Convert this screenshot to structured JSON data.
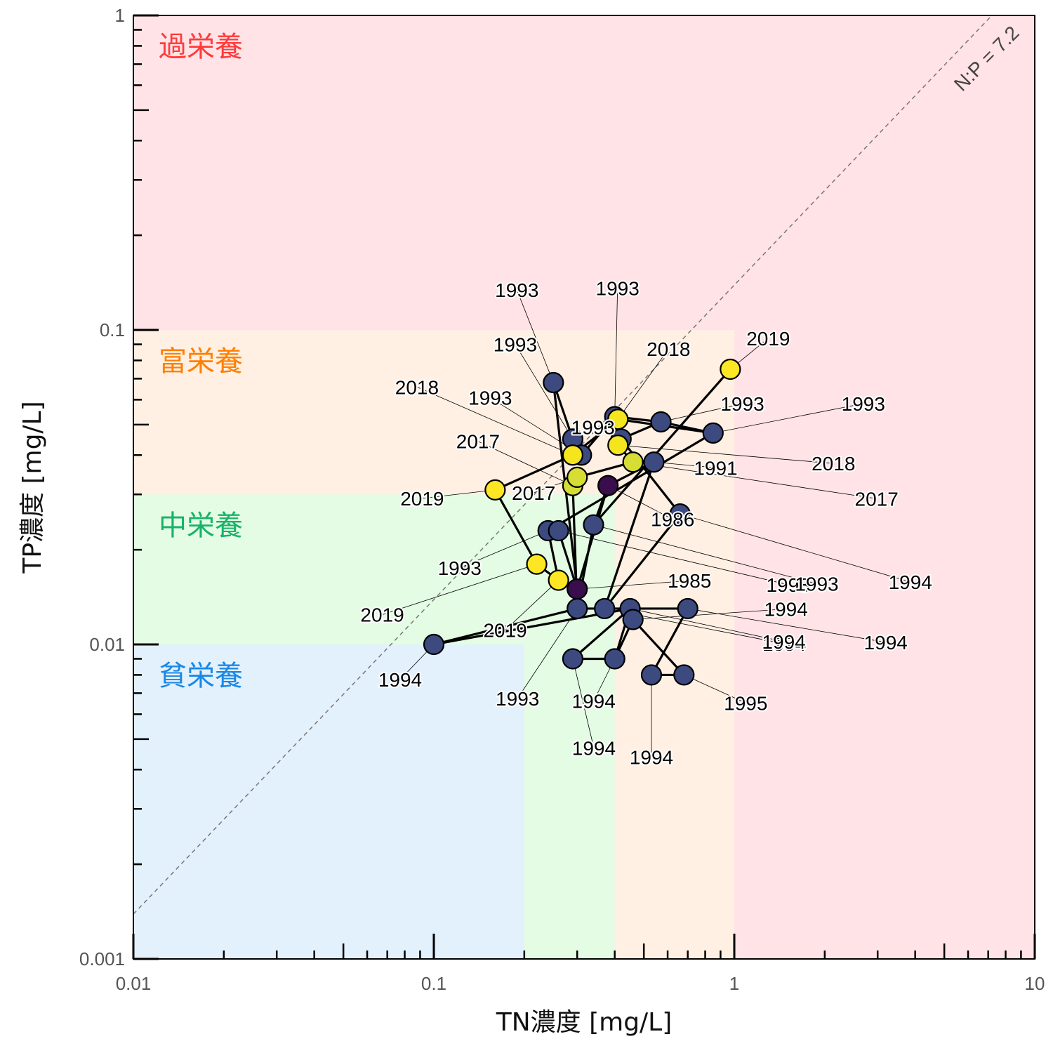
{
  "chart_data": {
    "type": "scatter",
    "xlabel": "TN濃度 [mg/L]",
    "ylabel": "TP濃度 [mg/L]",
    "x_scale": "log",
    "y_scale": "log",
    "xlim": [
      0.01,
      10
    ],
    "ylim": [
      0.001,
      1
    ],
    "x_tick_labels": [
      "0.01",
      "0.1",
      "1",
      "10"
    ],
    "y_tick_labels": [
      "0.001",
      "0.01",
      "0.1",
      "1"
    ],
    "grid": false,
    "reference_line": {
      "label": "N:P = 7.2",
      "ratio": 7.2
    },
    "zones": [
      {
        "label": "過栄養",
        "fill": "#ffe3e6",
        "text_color": "#ff3b3b",
        "tn_max": 10,
        "tp_max": 1
      },
      {
        "label": "富栄養",
        "fill": "#fff0e3",
        "text_color": "#ff7f00",
        "tn_max": 1,
        "tp_max": 0.1
      },
      {
        "label": "中栄養",
        "fill": "#e4fce3",
        "text_color": "#18b26b",
        "tn_max": 0.4,
        "tp_max": 0.03
      },
      {
        "label": "貧栄養",
        "fill": "#e3f1fd",
        "text_color": "#1a88e6",
        "tn_max": 0.2,
        "tp_max": 0.01
      }
    ],
    "points": [
      {
        "label": "1985",
        "tn": 0.3,
        "tp": 0.015,
        "color": "#3a0d4c"
      },
      {
        "label": "1986",
        "tn": 0.38,
        "tp": 0.032,
        "color": "#3a0d4c"
      },
      {
        "label": "1991",
        "tn": 0.54,
        "tp": 0.038,
        "color": "#3c4a80"
      },
      {
        "label": "1993",
        "tn": 0.25,
        "tp": 0.068,
        "color": "#3c4a80"
      },
      {
        "label": "1993",
        "tn": 0.29,
        "tp": 0.045,
        "color": "#3c4a80"
      },
      {
        "label": "1993",
        "tn": 0.31,
        "tp": 0.04,
        "color": "#3c4a80"
      },
      {
        "label": "1993",
        "tn": 0.4,
        "tp": 0.053,
        "color": "#3c4a80"
      },
      {
        "label": "1993",
        "tn": 0.57,
        "tp": 0.051,
        "color": "#3c4a80"
      },
      {
        "label": "1993",
        "tn": 0.85,
        "tp": 0.047,
        "color": "#3c4a80"
      },
      {
        "label": "1993",
        "tn": 0.42,
        "tp": 0.045,
        "color": "#3c4a80"
      },
      {
        "label": "1993",
        "tn": 0.24,
        "tp": 0.023,
        "color": "#3c4a80"
      },
      {
        "label": "1993",
        "tn": 0.26,
        "tp": 0.023,
        "color": "#3c4a80"
      },
      {
        "label": "1993",
        "tn": 0.34,
        "tp": 0.024,
        "color": "#3c4a80"
      },
      {
        "label": "1993",
        "tn": 0.3,
        "tp": 0.013,
        "color": "#3c4a80"
      },
      {
        "label": "1994",
        "tn": 0.66,
        "tp": 0.026,
        "color": "#3c4a80"
      },
      {
        "label": "1994",
        "tn": 0.1,
        "tp": 0.01,
        "color": "#3c4a80"
      },
      {
        "label": "1994",
        "tn": 0.37,
        "tp": 0.013,
        "color": "#3c4a80"
      },
      {
        "label": "1994",
        "tn": 0.45,
        "tp": 0.013,
        "color": "#3c4a80"
      },
      {
        "label": "1994",
        "tn": 0.46,
        "tp": 0.012,
        "color": "#3c4a80"
      },
      {
        "label": "1994",
        "tn": 0.7,
        "tp": 0.013,
        "color": "#3c4a80"
      },
      {
        "label": "1994",
        "tn": 0.29,
        "tp": 0.009,
        "color": "#3c4a80"
      },
      {
        "label": "1994",
        "tn": 0.4,
        "tp": 0.009,
        "color": "#3c4a80"
      },
      {
        "label": "1994",
        "tn": 0.53,
        "tp": 0.008,
        "color": "#3c4a80"
      },
      {
        "label": "1995",
        "tn": 0.68,
        "tp": 0.008,
        "color": "#3c4a80"
      },
      {
        "label": "2017",
        "tn": 0.29,
        "tp": 0.032,
        "color": "#d6dd34"
      },
      {
        "label": "2017",
        "tn": 0.3,
        "tp": 0.034,
        "color": "#d6dd34"
      },
      {
        "label": "2017",
        "tn": 0.46,
        "tp": 0.038,
        "color": "#d6dd34"
      },
      {
        "label": "2018",
        "tn": 0.29,
        "tp": 0.04,
        "color": "#f5e51f"
      },
      {
        "label": "2018",
        "tn": 0.41,
        "tp": 0.052,
        "color": "#f5e51f"
      },
      {
        "label": "2018",
        "tn": 0.41,
        "tp": 0.043,
        "color": "#f5e51f"
      },
      {
        "label": "2019",
        "tn": 0.16,
        "tp": 0.031,
        "color": "#fde725"
      },
      {
        "label": "2019",
        "tn": 0.22,
        "tp": 0.018,
        "color": "#fde725"
      },
      {
        "label": "2019",
        "tn": 0.26,
        "tp": 0.016,
        "color": "#fde725"
      },
      {
        "label": "2019",
        "tn": 0.97,
        "tp": 0.075,
        "color": "#fde725"
      }
    ]
  }
}
